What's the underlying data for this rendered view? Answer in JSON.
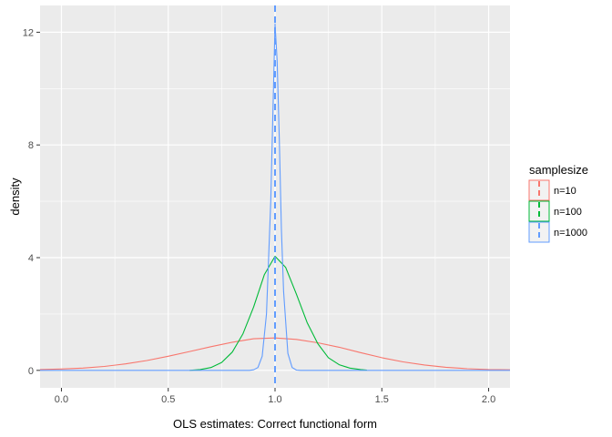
{
  "chart_data": {
    "type": "line",
    "xlabel": "OLS estimates: Correct functional form",
    "ylabel": "density",
    "xlim": [
      -0.1,
      2.1
    ],
    "ylim": [
      -0.62,
      12.95
    ],
    "x_ticks": [
      0.0,
      0.5,
      1.0,
      1.5,
      2.0
    ],
    "x_tick_labels": [
      "0.0",
      "0.5",
      "1.0",
      "1.5",
      "2.0"
    ],
    "y_ticks": [
      0,
      4,
      8,
      12
    ],
    "y_tick_labels": [
      "0",
      "4",
      "8",
      "12"
    ],
    "grid": true,
    "legend": {
      "title": "samplesize",
      "position": "right"
    },
    "reference_line": {
      "x": 1.0,
      "style": "dashed",
      "color": "#619CFF"
    },
    "series": [
      {
        "name": "n=10",
        "color": "#F8766D",
        "points": [
          [
            -0.1,
            0.03
          ],
          [
            0.0,
            0.05
          ],
          [
            0.1,
            0.08
          ],
          [
            0.2,
            0.14
          ],
          [
            0.3,
            0.23
          ],
          [
            0.4,
            0.35
          ],
          [
            0.5,
            0.5
          ],
          [
            0.6,
            0.67
          ],
          [
            0.7,
            0.84
          ],
          [
            0.8,
            1.0
          ],
          [
            0.9,
            1.12
          ],
          [
            1.0,
            1.15
          ],
          [
            1.1,
            1.1
          ],
          [
            1.2,
            0.98
          ],
          [
            1.3,
            0.82
          ],
          [
            1.4,
            0.63
          ],
          [
            1.5,
            0.45
          ],
          [
            1.6,
            0.3
          ],
          [
            1.7,
            0.19
          ],
          [
            1.8,
            0.11
          ],
          [
            1.9,
            0.06
          ],
          [
            2.0,
            0.03
          ],
          [
            2.1,
            0.02
          ]
        ]
      },
      {
        "name": "n=100",
        "color": "#00BA38",
        "points": [
          [
            0.6,
            0.0
          ],
          [
            0.65,
            0.03
          ],
          [
            0.7,
            0.1
          ],
          [
            0.75,
            0.28
          ],
          [
            0.8,
            0.65
          ],
          [
            0.85,
            1.3
          ],
          [
            0.9,
            2.25
          ],
          [
            0.95,
            3.4
          ],
          [
            1.0,
            4.05
          ],
          [
            1.05,
            3.65
          ],
          [
            1.1,
            2.7
          ],
          [
            1.15,
            1.7
          ],
          [
            1.2,
            0.95
          ],
          [
            1.25,
            0.45
          ],
          [
            1.3,
            0.2
          ],
          [
            1.35,
            0.08
          ],
          [
            1.4,
            0.03
          ],
          [
            1.43,
            0.01
          ]
        ]
      },
      {
        "name": "n=1000",
        "color": "#619CFF",
        "points": [
          [
            -0.1,
            0.0
          ],
          [
            0.88,
            0.0
          ],
          [
            0.9,
            0.02
          ],
          [
            0.92,
            0.1
          ],
          [
            0.94,
            0.5
          ],
          [
            0.96,
            2.0
          ],
          [
            0.98,
            6.0
          ],
          [
            0.99,
            9.2
          ],
          [
            1.0,
            12.3
          ],
          [
            1.01,
            11.0
          ],
          [
            1.02,
            8.2
          ],
          [
            1.03,
            5.0
          ],
          [
            1.04,
            2.8
          ],
          [
            1.06,
            0.6
          ],
          [
            1.08,
            0.1
          ],
          [
            1.1,
            0.01
          ],
          [
            1.12,
            0.0
          ],
          [
            2.1,
            0.0
          ]
        ]
      }
    ]
  }
}
